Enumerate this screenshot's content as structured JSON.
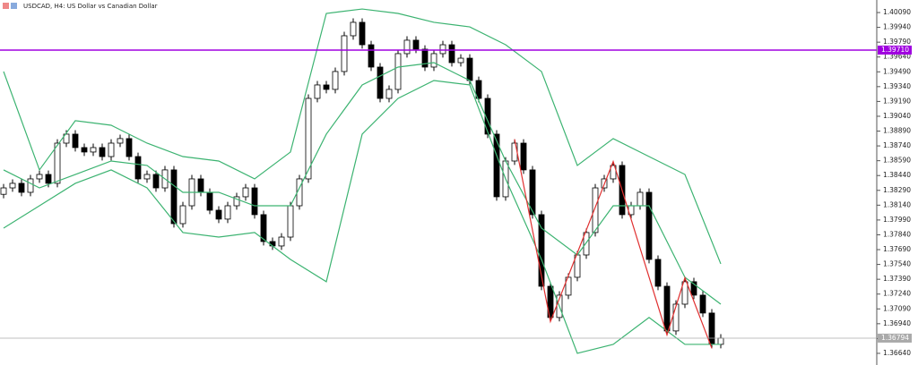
{
  "chart_data": {
    "type": "candlestick",
    "title": "USDCAD, H4:  US Dollar vs Canadian Dollar",
    "ylim": [
      1.36522,
      1.40217
    ],
    "yticks": [
      {
        "value": 1.4009,
        "label": "1.40090"
      },
      {
        "value": 1.3994,
        "label": "1.39940"
      },
      {
        "value": 1.3979,
        "label": "1.39790"
      },
      {
        "value": 1.3964,
        "label": "1.39640"
      },
      {
        "value": 1.3949,
        "label": "1.39490"
      },
      {
        "value": 1.3934,
        "label": "1.39340"
      },
      {
        "value": 1.3919,
        "label": "1.39190"
      },
      {
        "value": 1.3904,
        "label": "1.39040"
      },
      {
        "value": 1.3889,
        "label": "1.38890"
      },
      {
        "value": 1.3874,
        "label": "1.38740"
      },
      {
        "value": 1.3859,
        "label": "1.38590"
      },
      {
        "value": 1.3844,
        "label": "1.38440"
      },
      {
        "value": 1.3829,
        "label": "1.38290"
      },
      {
        "value": 1.3814,
        "label": "1.38140"
      },
      {
        "value": 1.3799,
        "label": "1.37990"
      },
      {
        "value": 1.3784,
        "label": "1.37840"
      },
      {
        "value": 1.3769,
        "label": "1.37690"
      },
      {
        "value": 1.3754,
        "label": "1.37540"
      },
      {
        "value": 1.3739,
        "label": "1.37390"
      },
      {
        "value": 1.3724,
        "label": "1.37240"
      },
      {
        "value": 1.3709,
        "label": "1.37090"
      },
      {
        "value": 1.3694,
        "label": "1.36940"
      },
      {
        "value": 1.3679,
        "label": "1.36790"
      },
      {
        "value": 1.3664,
        "label": "1.36640"
      }
    ],
    "candles": {
      "open": [
        1.3825,
        1.38315,
        1.38361,
        1.3827,
        1.38406,
        1.38451,
        1.38361,
        1.38768,
        1.38859,
        1.38723,
        1.38678,
        1.38723,
        1.38632,
        1.38768,
        1.38814,
        1.38632,
        1.38406,
        1.38451,
        1.38315,
        1.38497,
        1.37953,
        1.38134,
        1.38406,
        1.3827,
        1.38089,
        1.37999,
        1.38134,
        1.38225,
        1.38315,
        1.38044,
        1.37772,
        1.37727,
        1.37817,
        1.38134,
        1.38406,
        1.39221,
        1.39357,
        1.39312,
        1.39493,
        1.39855,
        1.39991,
        1.39764,
        1.39538,
        1.39221,
        1.39312,
        1.39674,
        1.3981,
        1.39719,
        1.39538,
        1.39674,
        1.39764,
        1.39583,
        1.39628,
        1.39402,
        1.39221,
        1.38859,
        1.38225,
        1.38587,
        1.38768,
        1.38497,
        1.38044,
        1.37319,
        1.37003,
        1.37229,
        1.3741,
        1.37636,
        1.37863,
        1.38315,
        1.38406,
        1.38542,
        1.38044,
        1.38134,
        1.3827,
        1.37591,
        1.37319,
        1.36867,
        1.37138,
        1.37365,
        1.37229,
        1.37048,
        1.36731
      ],
      "high": [
        1.38355,
        1.38401,
        1.38401,
        1.38446,
        1.38491,
        1.38491,
        1.38808,
        1.38899,
        1.38899,
        1.38763,
        1.38763,
        1.38763,
        1.38808,
        1.38854,
        1.38854,
        1.38672,
        1.38491,
        1.38491,
        1.38537,
        1.38537,
        1.38174,
        1.38446,
        1.38446,
        1.3831,
        1.38129,
        1.38174,
        1.38265,
        1.38355,
        1.38355,
        1.38084,
        1.37812,
        1.37857,
        1.38174,
        1.38446,
        1.39261,
        1.39397,
        1.39397,
        1.39533,
        1.39895,
        1.40031,
        1.40031,
        1.39804,
        1.39578,
        1.39352,
        1.39714,
        1.3985,
        1.3985,
        1.39759,
        1.39714,
        1.39804,
        1.39804,
        1.39668,
        1.39668,
        1.39442,
        1.39261,
        1.38899,
        1.38627,
        1.38808,
        1.38808,
        1.38537,
        1.38084,
        1.37359,
        1.37269,
        1.3745,
        1.37676,
        1.37903,
        1.38355,
        1.38446,
        1.38582,
        1.38582,
        1.38174,
        1.3831,
        1.3831,
        1.37631,
        1.37359,
        1.37178,
        1.37405,
        1.37405,
        1.37269,
        1.37088,
        1.36834
      ],
      "low": [
        1.3821,
        1.38275,
        1.3823,
        1.3823,
        1.38366,
        1.38321,
        1.38321,
        1.38728,
        1.38683,
        1.38638,
        1.38638,
        1.38592,
        1.38592,
        1.38728,
        1.38592,
        1.38366,
        1.38366,
        1.38275,
        1.38275,
        1.37913,
        1.37913,
        1.38094,
        1.3823,
        1.38049,
        1.37959,
        1.37959,
        1.38094,
        1.38185,
        1.38004,
        1.37732,
        1.37687,
        1.37687,
        1.37777,
        1.38094,
        1.38366,
        1.39181,
        1.39272,
        1.39272,
        1.39453,
        1.39815,
        1.39724,
        1.39498,
        1.39181,
        1.39181,
        1.39272,
        1.39634,
        1.39679,
        1.39498,
        1.39498,
        1.39634,
        1.39543,
        1.39543,
        1.39362,
        1.39181,
        1.38819,
        1.38185,
        1.38185,
        1.38547,
        1.38457,
        1.38004,
        1.37279,
        1.36963,
        1.36963,
        1.37189,
        1.3737,
        1.37596,
        1.37823,
        1.38275,
        1.38366,
        1.38004,
        1.38004,
        1.38094,
        1.37551,
        1.37279,
        1.36827,
        1.36827,
        1.37098,
        1.37189,
        1.37008,
        1.36691,
        1.36691
      ],
      "close": [
        1.38315,
        1.38361,
        1.3827,
        1.38406,
        1.38451,
        1.38361,
        1.38768,
        1.38859,
        1.38723,
        1.38678,
        1.38723,
        1.38632,
        1.38768,
        1.38814,
        1.38632,
        1.38406,
        1.38451,
        1.38315,
        1.38497,
        1.37953,
        1.38134,
        1.38406,
        1.3827,
        1.38089,
        1.37999,
        1.38134,
        1.38225,
        1.38315,
        1.38044,
        1.37772,
        1.37727,
        1.37817,
        1.38134,
        1.38406,
        1.39221,
        1.39357,
        1.39312,
        1.39493,
        1.39855,
        1.39991,
        1.39764,
        1.39538,
        1.39221,
        1.39312,
        1.39674,
        1.3981,
        1.39719,
        1.39538,
        1.39674,
        1.39764,
        1.39583,
        1.39628,
        1.39402,
        1.39221,
        1.38859,
        1.38225,
        1.38587,
        1.38768,
        1.38497,
        1.38044,
        1.37319,
        1.37003,
        1.37229,
        1.3741,
        1.37636,
        1.37863,
        1.38315,
        1.38406,
        1.38542,
        1.38044,
        1.38134,
        1.3827,
        1.37591,
        1.37319,
        1.36867,
        1.37138,
        1.37365,
        1.37229,
        1.37048,
        1.36731,
        1.36794
      ]
    },
    "overlays": [
      {
        "color": "#3cb371",
        "x": [
          0,
          4,
          8,
          12,
          16,
          20,
          24,
          28,
          32,
          36,
          40,
          44,
          48,
          52,
          56,
          60,
          64,
          68,
          72,
          76,
          80
        ],
        "values": [
          1.39493,
          1.38497,
          1.38995,
          1.38949,
          1.38768,
          1.38632,
          1.38587,
          1.38406,
          1.38678,
          1.40081,
          1.40126,
          1.40081,
          1.39991,
          1.39945,
          1.39764,
          1.39493,
          1.38542,
          1.38814,
          1.38632,
          1.38451,
          1.37546
        ]
      },
      {
        "color": "#3cb371",
        "x": [
          0,
          4,
          8,
          12,
          16,
          20,
          24,
          28,
          32,
          36,
          40,
          44,
          48,
          52,
          56,
          60,
          64,
          68,
          72,
          76,
          80
        ],
        "values": [
          1.38497,
          1.38315,
          1.38451,
          1.38587,
          1.38542,
          1.3827,
          1.3827,
          1.38134,
          1.38134,
          1.38859,
          1.39357,
          1.39538,
          1.39583,
          1.39402,
          1.38587,
          1.37908,
          1.37636,
          1.38134,
          1.38134,
          1.3741,
          1.37138
        ]
      },
      {
        "color": "#3cb371",
        "x": [
          0,
          4,
          8,
          12,
          16,
          20,
          24,
          28,
          32,
          36,
          40,
          44,
          48,
          52,
          56,
          60,
          64,
          68,
          72,
          76,
          80
        ],
        "values": [
          1.37908,
          1.38134,
          1.38361,
          1.38497,
          1.38315,
          1.37863,
          1.37817,
          1.37863,
          1.37591,
          1.37365,
          1.38859,
          1.39221,
          1.39402,
          1.39357,
          1.38406,
          1.37591,
          1.3664,
          1.36731,
          1.37003,
          1.36731,
          1.36731
        ]
      },
      {
        "color": "#e03030",
        "x": [
          57,
          61,
          68,
          74,
          76,
          79
        ],
        "values": [
          1.38808,
          1.36963,
          1.38582,
          1.36827,
          1.37405,
          1.36691
        ]
      }
    ],
    "hlines": [
      {
        "value": 1.3971,
        "label": "1.39710",
        "color": "#a000e0"
      },
      {
        "value": 1.36794,
        "label": "1.36794",
        "color": "#aaaaaa"
      }
    ]
  }
}
